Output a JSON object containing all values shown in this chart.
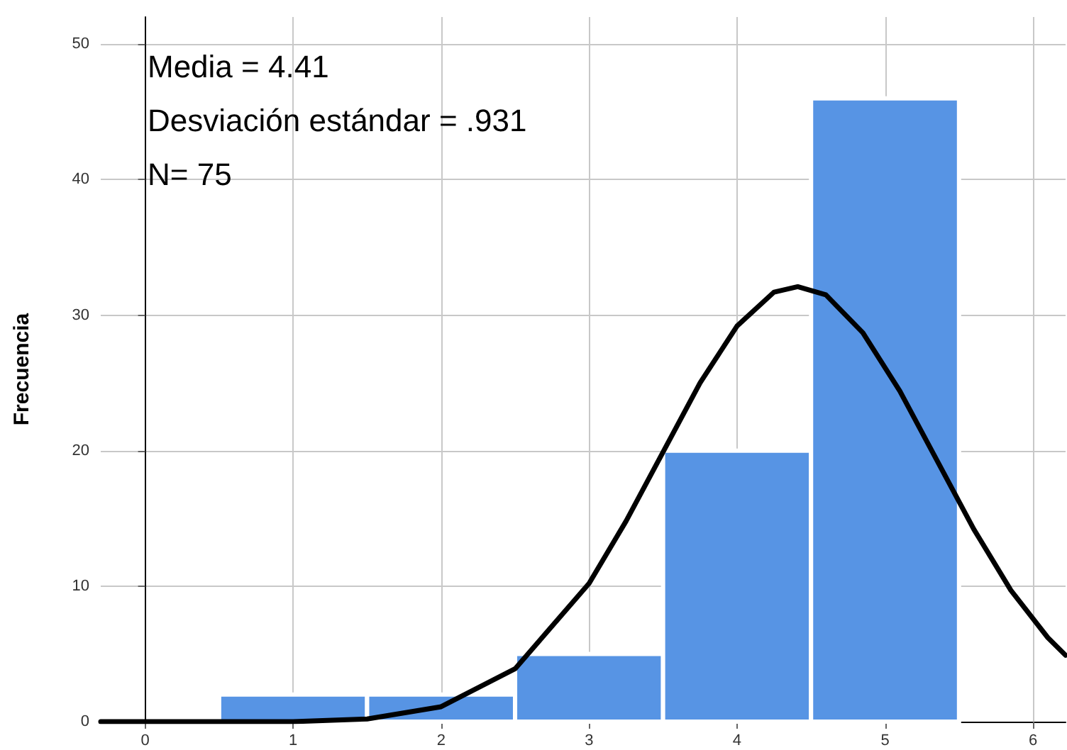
{
  "chart_data": {
    "type": "histogram",
    "ylabel": "Frecuencia",
    "annotations": [
      "Media = 4.41",
      "Desviación estándar = .931",
      "N= 75"
    ],
    "series": [
      {
        "color": "#5794e4",
        "bins": [
          0.5,
          1.5,
          2.5,
          3.5,
          4.5,
          5.5
        ],
        "values": [
          2,
          2,
          5,
          20,
          46
        ]
      },
      {
        "type": "line",
        "color": "#000000",
        "x": [
          -0.3,
          0,
          0.5,
          1,
          1.5,
          2,
          2.5,
          3,
          3.25,
          3.5,
          3.75,
          4,
          4.25,
          4.41,
          4.6,
          4.85,
          5.1,
          5.35,
          5.6,
          5.85,
          6.1,
          6.22
        ],
        "values": [
          0,
          0,
          0,
          0,
          0.2,
          1.1,
          3.9,
          10.2,
          14.8,
          19.9,
          25,
          29.2,
          31.7,
          32.1,
          31.5,
          28.7,
          24.4,
          19.3,
          14.2,
          9.7,
          6.2,
          4.9
        ]
      }
    ],
    "xlim": [
      -0.3,
      6.22
    ],
    "xticks": [
      0,
      1,
      2,
      3,
      4,
      5,
      6
    ],
    "ylim": [
      0,
      52
    ],
    "yticks": [
      0,
      10,
      20,
      30,
      40,
      50
    ],
    "grid": true,
    "marker": "none",
    "line_style": "solid"
  }
}
